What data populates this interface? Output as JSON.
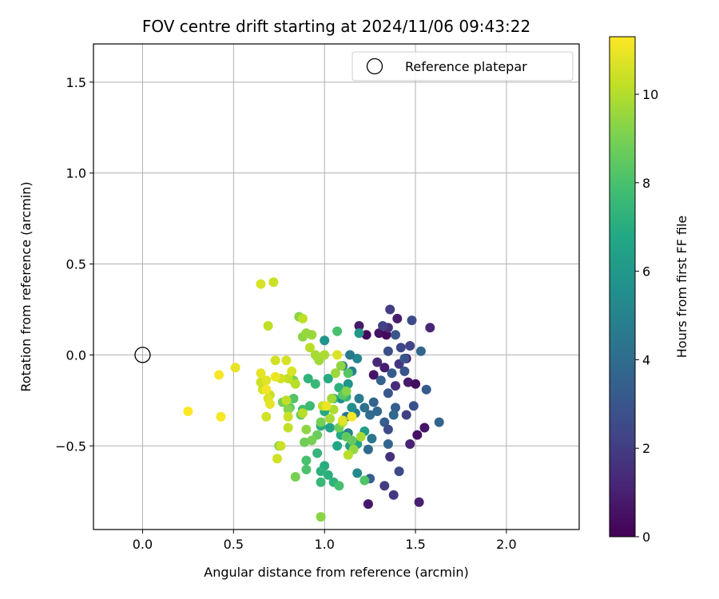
{
  "chart_data": {
    "type": "scatter",
    "title": "FOV centre drift starting at 2024/11/06 09:43:22",
    "xlabel": "Angular distance from reference (arcmin)",
    "ylabel": "Rotation from reference (arcmin)",
    "xlim": [
      -0.27,
      2.4
    ],
    "ylim": [
      -0.96,
      1.71
    ],
    "xticks": [
      0.0,
      0.5,
      1.0,
      1.5,
      2.0
    ],
    "yticks": [
      -0.5,
      0.0,
      0.5,
      1.0,
      1.5
    ],
    "xtick_labels": [
      "0.0",
      "0.5",
      "1.0",
      "1.5",
      "2.0"
    ],
    "ytick_labels": [
      "−0.5",
      "0.0",
      "0.5",
      "1.0",
      "1.5"
    ],
    "grid": true,
    "legend": {
      "placement": "top-right",
      "entries": [
        "Reference platepar"
      ]
    },
    "reference_point": {
      "x": 0.0,
      "y": 0.0,
      "label": "Reference platepar"
    },
    "colorbar": {
      "label": "Hours from first FF file",
      "colormap": "viridis",
      "min": 0,
      "max": 11.3,
      "ticks": [
        0,
        2,
        4,
        6,
        8,
        10
      ],
      "tick_labels": [
        "0",
        "2",
        "4",
        "6",
        "8",
        "10"
      ]
    },
    "points": [
      [
        1.23,
        0.11,
        0.2
      ],
      [
        1.3,
        0.12,
        0.5
      ],
      [
        1.34,
        0.11,
        0.3
      ],
      [
        1.27,
        -0.11,
        0.6
      ],
      [
        1.46,
        -0.15,
        0.8
      ],
      [
        1.5,
        -0.16,
        0.4
      ],
      [
        1.45,
        -0.02,
        1.0
      ],
      [
        1.33,
        -0.07,
        0.9
      ],
      [
        1.52,
        -0.81,
        1.0
      ],
      [
        1.24,
        -0.82,
        0.7
      ],
      [
        1.47,
        -0.49,
        1.1
      ],
      [
        1.51,
        -0.44,
        0.5
      ],
      [
        1.39,
        -0.17,
        1.4
      ],
      [
        1.55,
        -0.4,
        0.6
      ],
      [
        1.58,
        0.15,
        1.2
      ],
      [
        1.35,
        0.15,
        1.6
      ],
      [
        1.4,
        0.2,
        0.9
      ],
      [
        1.19,
        0.16,
        0.8
      ],
      [
        1.29,
        -0.04,
        1.3
      ],
      [
        1.41,
        -0.05,
        1.8
      ],
      [
        1.36,
        0.25,
        2.0
      ],
      [
        1.32,
        0.16,
        2.2
      ],
      [
        1.48,
        0.19,
        2.6
      ],
      [
        1.39,
        0.11,
        3.0
      ],
      [
        1.42,
        0.04,
        2.4
      ],
      [
        1.35,
        0.02,
        2.7
      ],
      [
        1.44,
        -0.09,
        2.9
      ],
      [
        1.37,
        -0.1,
        3.2
      ],
      [
        1.31,
        -0.14,
        3.5
      ],
      [
        1.35,
        -0.21,
        3.1
      ],
      [
        1.27,
        -0.26,
        3.6
      ],
      [
        1.49,
        -0.28,
        2.8
      ],
      [
        1.45,
        -0.33,
        2.1
      ],
      [
        1.39,
        -0.29,
        3.3
      ],
      [
        1.33,
        -0.37,
        3.4
      ],
      [
        1.29,
        -0.31,
        3.8
      ],
      [
        1.25,
        -0.33,
        4.0
      ],
      [
        1.35,
        -0.41,
        2.6
      ],
      [
        1.38,
        -0.33,
        3.9
      ],
      [
        1.53,
        0.02,
        3.7
      ],
      [
        1.56,
        -0.19,
        3.2
      ],
      [
        1.63,
        -0.37,
        3.6
      ],
      [
        1.47,
        0.05,
        2.3
      ],
      [
        1.44,
        -0.02,
        3.0
      ],
      [
        1.22,
        -0.29,
        4.2
      ],
      [
        1.26,
        -0.46,
        4.4
      ],
      [
        1.24,
        -0.52,
        3.9
      ],
      [
        1.35,
        -0.49,
        3.6
      ],
      [
        1.41,
        -0.64,
        2.5
      ],
      [
        1.36,
        -0.56,
        1.6
      ],
      [
        1.33,
        -0.72,
        2.0
      ],
      [
        1.38,
        -0.77,
        1.8
      ],
      [
        1.25,
        -0.68,
        3.4
      ],
      [
        1.17,
        -0.32,
        4.6
      ],
      [
        1.12,
        -0.34,
        4.3
      ],
      [
        1.19,
        -0.24,
        4.8
      ],
      [
        1.15,
        -0.09,
        5.0
      ],
      [
        1.1,
        -0.06,
        4.7
      ],
      [
        1.18,
        -0.02,
        5.2
      ],
      [
        1.14,
        0.0,
        4.6
      ],
      [
        1.13,
        -0.43,
        4.9
      ],
      [
        1.18,
        -0.65,
        5.3
      ],
      [
        1.15,
        -0.29,
        5.6
      ],
      [
        1.13,
        -0.16,
        5.8
      ],
      [
        1.09,
        -0.24,
        5.5
      ],
      [
        1.19,
        0.12,
        6.0
      ],
      [
        1.0,
        0.08,
        5.8
      ],
      [
        1.22,
        -0.42,
        6.2
      ],
      [
        1.14,
        -0.5,
        6.3
      ],
      [
        1.18,
        -0.49,
        6.6
      ],
      [
        1.07,
        -0.5,
        6.7
      ],
      [
        1.03,
        -0.4,
        6.5
      ],
      [
        1.09,
        -0.44,
        6.8
      ],
      [
        1.0,
        -0.31,
        6.9
      ],
      [
        0.98,
        -0.39,
        7.0
      ],
      [
        1.08,
        -0.18,
        7.2
      ],
      [
        1.12,
        -0.23,
        7.4
      ],
      [
        1.05,
        -0.24,
        7.1
      ],
      [
        1.02,
        -0.13,
        6.9
      ],
      [
        0.91,
        -0.13,
        7.3
      ],
      [
        0.95,
        -0.16,
        7.5
      ],
      [
        0.92,
        -0.28,
        7.6
      ],
      [
        0.88,
        -0.3,
        7.8
      ],
      [
        1.0,
        -0.61,
        7.0
      ],
      [
        0.98,
        -0.64,
        7.2
      ],
      [
        0.96,
        -0.54,
        7.4
      ],
      [
        1.02,
        -0.66,
        7.1
      ],
      [
        1.05,
        -0.7,
        7.3
      ],
      [
        0.98,
        -0.7,
        7.5
      ],
      [
        1.08,
        -0.72,
        7.9
      ],
      [
        0.9,
        -0.58,
        8.0
      ],
      [
        0.9,
        -0.63,
        8.1
      ],
      [
        1.22,
        -0.69,
        8.2
      ],
      [
        1.07,
        0.13,
        8.0
      ],
      [
        0.96,
        -0.01,
        8.2
      ],
      [
        1.13,
        -0.1,
        8.3
      ],
      [
        1.1,
        -0.22,
        8.4
      ],
      [
        1.12,
        -0.45,
        8.5
      ],
      [
        1.08,
        -0.4,
        8.8
      ],
      [
        1.15,
        -0.47,
        8.6
      ],
      [
        0.98,
        -0.37,
        8.9
      ],
      [
        0.96,
        -0.44,
        8.7
      ],
      [
        0.93,
        -0.47,
        9.0
      ],
      [
        0.89,
        -0.48,
        8.8
      ],
      [
        0.87,
        -0.33,
        8.6
      ],
      [
        0.83,
        -0.24,
        8.2
      ],
      [
        0.81,
        -0.29,
        8.5
      ],
      [
        0.84,
        -0.67,
        9.0
      ],
      [
        0.75,
        -0.5,
        9.1
      ],
      [
        0.77,
        -0.26,
        8.9
      ],
      [
        0.8,
        -0.3,
        9.2
      ],
      [
        0.83,
        -0.14,
        9.0
      ],
      [
        0.98,
        -0.89,
        9.3
      ],
      [
        0.9,
        -0.41,
        9.4
      ],
      [
        0.86,
        0.21,
        9.3
      ],
      [
        0.88,
        0.1,
        9.4
      ],
      [
        0.93,
        0.11,
        9.6
      ],
      [
        0.9,
        0.12,
        9.5
      ],
      [
        0.97,
        -0.03,
        9.7
      ],
      [
        0.95,
        0.0,
        9.8
      ],
      [
        1.0,
        0.0,
        9.9
      ],
      [
        1.06,
        -0.1,
        9.6
      ],
      [
        1.09,
        -0.06,
        9.4
      ],
      [
        1.04,
        -0.24,
        9.7
      ],
      [
        1.03,
        -0.35,
        9.8
      ],
      [
        1.05,
        -0.3,
        9.9
      ],
      [
        1.1,
        -0.37,
        10.0
      ],
      [
        1.16,
        -0.52,
        9.5
      ],
      [
        1.2,
        -0.45,
        9.8
      ],
      [
        0.92,
        0.04,
        10.1
      ],
      [
        0.88,
        0.2,
        10.2
      ],
      [
        0.84,
        -0.16,
        10.1
      ],
      [
        0.8,
        -0.13,
        10.3
      ],
      [
        0.76,
        -0.13,
        10.5
      ],
      [
        0.79,
        -0.25,
        10.2
      ],
      [
        0.8,
        -0.34,
        10.4
      ],
      [
        0.7,
        -0.22,
        10.3
      ],
      [
        0.68,
        -0.34,
        10.5
      ],
      [
        0.66,
        -0.19,
        10.6
      ],
      [
        0.65,
        -0.15,
        10.4
      ],
      [
        0.72,
        0.4,
        10.4
      ],
      [
        0.65,
        0.39,
        10.6
      ],
      [
        0.69,
        0.16,
        10.2
      ],
      [
        0.73,
        -0.03,
        10.5
      ],
      [
        0.79,
        -0.03,
        10.6
      ],
      [
        0.8,
        -0.4,
        10.3
      ],
      [
        0.74,
        -0.57,
        10.5
      ],
      [
        0.76,
        -0.5,
        10.4
      ],
      [
        0.88,
        -0.32,
        10.1
      ],
      [
        0.99,
        -0.28,
        10.2
      ],
      [
        0.69,
        -0.24,
        10.7
      ],
      [
        0.7,
        -0.27,
        10.9
      ],
      [
        0.68,
        -0.14,
        10.8
      ],
      [
        0.65,
        -0.1,
        10.9
      ],
      [
        0.82,
        -0.09,
        10.7
      ],
      [
        0.73,
        -0.12,
        11.0
      ],
      [
        0.68,
        -0.19,
        11.1
      ],
      [
        0.51,
        -0.07,
        10.9
      ],
      [
        0.42,
        -0.11,
        11.2
      ],
      [
        0.43,
        -0.34,
        11.2
      ],
      [
        0.25,
        -0.31,
        11.3
      ],
      [
        1.1,
        -0.36,
        10.8
      ],
      [
        1.01,
        -0.28,
        11.0
      ],
      [
        1.15,
        -0.34,
        11.1
      ],
      [
        1.07,
        0.0,
        10.7
      ],
      [
        1.13,
        -0.55,
        10.1
      ],
      [
        1.12,
        -0.2,
        9.2
      ]
    ]
  }
}
